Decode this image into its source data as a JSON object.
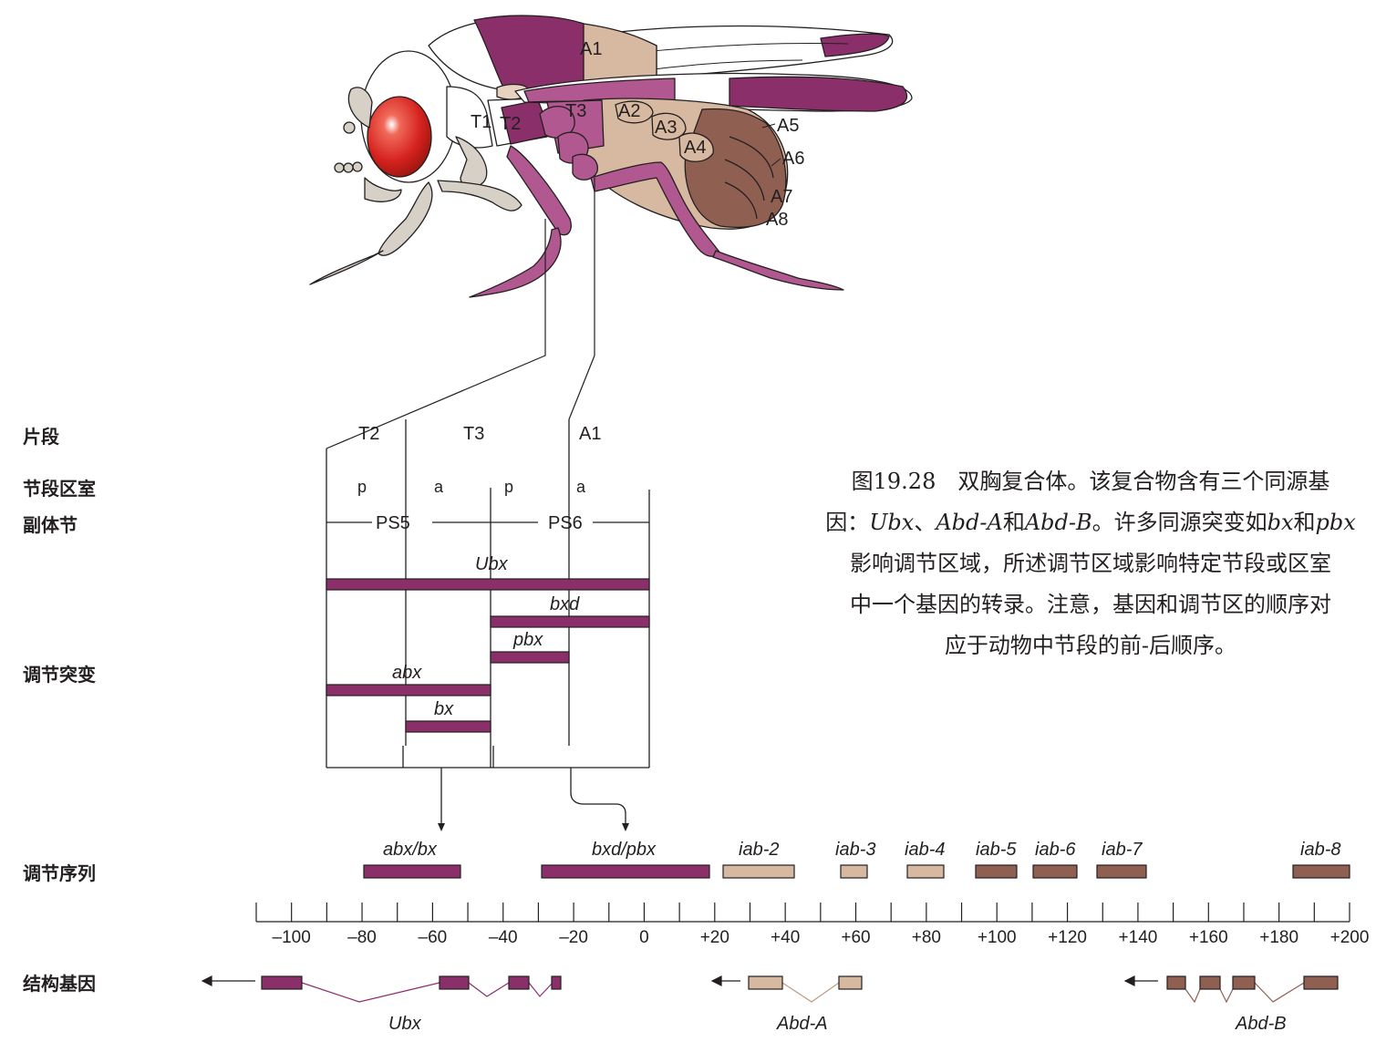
{
  "colors": {
    "purple": "#8b2f6b",
    "purple_light": "#b0588f",
    "tan": "#d7b8a0",
    "brown": "#8f5f52",
    "tan_light": "#e7d2c0",
    "leg_gray": "#d7d0c6",
    "eye_red": "#d6221e",
    "line": "#231f20"
  },
  "fly": {
    "segment_labels": [
      "A1",
      "A2",
      "A3",
      "A4",
      "A5",
      "A6",
      "A7",
      "A8",
      "T1",
      "T2",
      "T3"
    ]
  },
  "row_labels": {
    "segment": "片段",
    "compartment": "节段区室",
    "parasegment": "副体节",
    "regulatory_mutations": "调节突变",
    "regulatory_sequences": "调节序列",
    "structural_genes": "结构基因"
  },
  "segments": [
    "T2",
    "T3",
    "A1"
  ],
  "compartments": [
    "p",
    "a",
    "p",
    "a"
  ],
  "parasegments": [
    "PS5",
    "PS6"
  ],
  "mutations": [
    "Ubx",
    "bxd",
    "pbx",
    "abx",
    "bx"
  ],
  "reg_sequences": [
    "abx/bx",
    "bxd/pbx",
    "iab-2",
    "iab-3",
    "iab-4",
    "iab-5",
    "iab-6",
    "iab-7",
    "iab-8"
  ],
  "axis": {
    "ticks": [
      "–100",
      "–80",
      "–60",
      "–40",
      "–20",
      "0",
      "+20",
      "+40",
      "+60",
      "+80",
      "+100",
      "+120",
      "+140",
      "+160",
      "+180",
      "+200"
    ]
  },
  "genes": [
    "Ubx",
    "Abd-A",
    "Abd-B"
  ],
  "caption": {
    "line1_a": "图19.28　双胸复合体。该复合物含有三个同源基",
    "line2_a": "因：",
    "line2_b": "Ubx",
    "line2_c": "、",
    "line2_d": "Abd-A",
    "line2_e": "和",
    "line2_f": "Abd-B",
    "line2_g": "。许多同源突变如",
    "line2_h": "bx",
    "line2_i": "和",
    "line2_j": "pbx",
    "line3": "影响调节区域，所述调节区域影响特定节段或区室",
    "line4": "中一个基因的转录。注意，基因和调节区的顺序对",
    "line5": "应于动物中节段的前-后顺序。"
  }
}
